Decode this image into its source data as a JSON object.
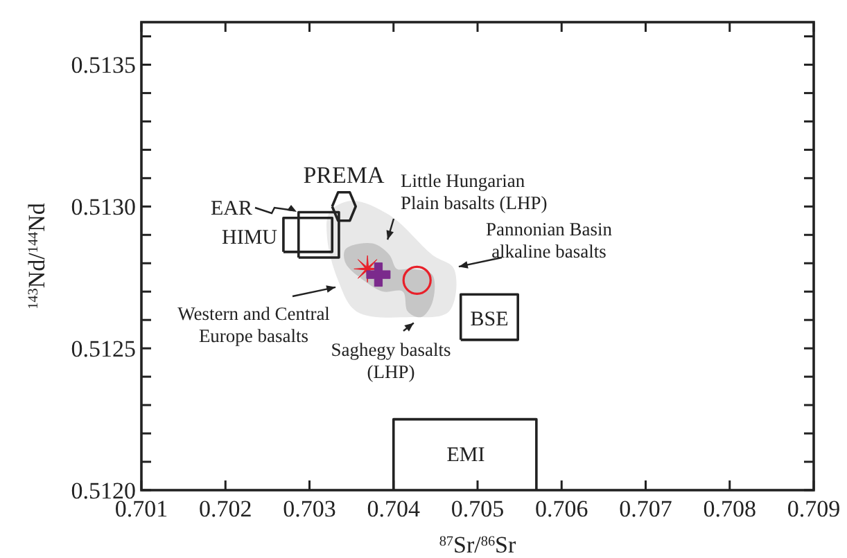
{
  "chart_data": {
    "type": "scatter",
    "xlabel": "$^{87}$Sr/$^{86}$Sr",
    "ylabel": "$^{143}$Nd/$^{144}$Nd",
    "xlim": [
      0.701,
      0.709
    ],
    "ylim": [
      0.512,
      0.51365
    ],
    "xticks": [
      0.701,
      0.702,
      0.703,
      0.704,
      0.705,
      0.706,
      0.707,
      0.708,
      0.709
    ],
    "yticks": [
      {
        "value": 0.512,
        "label": "0.5120"
      },
      {
        "value": 0.5121,
        "label": null
      },
      {
        "value": 0.5122,
        "label": null
      },
      {
        "value": 0.5123,
        "label": null
      },
      {
        "value": 0.5124,
        "label": null
      },
      {
        "value": 0.5125,
        "label": "0.5125"
      },
      {
        "value": 0.5126,
        "label": null
      },
      {
        "value": 0.5127,
        "label": null
      },
      {
        "value": 0.5128,
        "label": null
      },
      {
        "value": 0.5129,
        "label": null
      },
      {
        "value": 0.513,
        "label": "0.5130"
      },
      {
        "value": 0.5131,
        "label": null
      },
      {
        "value": 0.5132,
        "label": null
      },
      {
        "value": 0.5133,
        "label": null
      },
      {
        "value": 0.5134,
        "label": null
      },
      {
        "value": 0.5135,
        "label": "0.5135"
      },
      {
        "value": 0.5136,
        "label": null
      }
    ],
    "grid": false,
    "series": [
      {
        "marker": "star",
        "color": "#e8202a",
        "x": [
          0.70369
        ],
        "values": [
          0.51278
        ]
      },
      {
        "marker": "cross",
        "color": "#7b2a8c",
        "x": [
          0.70382
        ],
        "values": [
          0.51276
        ]
      },
      {
        "marker": "circle",
        "color": "#e8202a",
        "x": [
          0.70428
        ],
        "values": [
          0.51274
        ]
      },
      {
        "type": "line",
        "color": "#222222",
        "x": [
          0.704,
          0.704,
          0.7057,
          0.7057
        ],
        "values": [
          0.512,
          0.51225,
          0.51225,
          0.512
        ]
      }
    ],
    "annotations": [
      "Little Hungarian\nPlain basalts (LHP)",
      "Pannonian Basin\nalkaline basalts",
      "Western and Central\nEurope basalts",
      "Saghegy basalts\n(LHP)",
      "PREMA",
      "EAR",
      "HIMU",
      "BSE",
      "EMI"
    ]
  }
}
